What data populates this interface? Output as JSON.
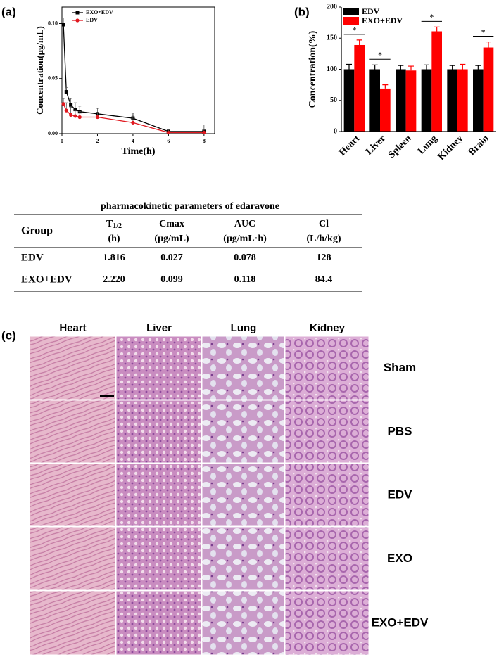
{
  "panel_labels": [
    "(a)",
    "(b)",
    "(c)"
  ],
  "chart_data": [
    {
      "type": "line",
      "xlabel": "Time(h)",
      "ylabel": "Concentration(μg/mL)",
      "x": [
        0.083,
        0.25,
        0.5,
        0.75,
        1,
        2,
        4,
        6,
        8
      ],
      "series": [
        {
          "name": "EXO+EDV",
          "color": "#000000",
          "marker": "square",
          "values": [
            0.099,
            0.038,
            0.026,
            0.022,
            0.02,
            0.018,
            0.014,
            0.002,
            0.002
          ],
          "errors": [
            0.006,
            0.004,
            0.006,
            0.006,
            0.005,
            0.005,
            0.004,
            0.002,
            0.002
          ]
        },
        {
          "name": "EDV",
          "color": "#e0181f",
          "marker": "circle",
          "values": [
            0.027,
            0.021,
            0.017,
            0.016,
            0.015,
            0.015,
            0.01,
            0.001,
            0.001
          ],
          "errors": [
            0.005,
            0.007,
            0.007,
            0.005,
            0.005,
            0.004,
            0.006,
            0.003,
            0.007
          ]
        }
      ],
      "xlim": [
        0,
        8.6
      ],
      "ylim": [
        0,
        0.115
      ],
      "xticks": [
        0,
        2,
        4,
        6,
        8
      ],
      "yticks": [
        {
          "value": 0,
          "label": "0.00"
        },
        {
          "value": 0.05,
          "label": "0.05"
        },
        {
          "value": 0.1,
          "label": "0.10"
        }
      ],
      "legend": "upper-left"
    },
    {
      "type": "bar",
      "ylabel": "Concentration(%)",
      "categories": [
        "Heart",
        "Liver",
        "Spleen",
        "Lung",
        "Kidney",
        "Brain"
      ],
      "series": [
        {
          "name": "EDV",
          "color": "#000000",
          "values": [
            100,
            100,
            100,
            100,
            100,
            100
          ],
          "errors": [
            8,
            7,
            6,
            7,
            6,
            6
          ]
        },
        {
          "name": "EXO+EDV",
          "color": "#ff0000",
          "values": [
            139,
            69,
            98,
            161,
            100,
            135
          ],
          "errors": [
            8,
            6,
            7,
            7,
            8,
            9
          ]
        }
      ],
      "significance": [
        "*",
        "*",
        null,
        "*",
        null,
        "*"
      ],
      "ylim": [
        0,
        200
      ],
      "yticks": [
        0,
        50,
        100,
        150,
        200
      ],
      "legend": "upper-left"
    }
  ],
  "table": {
    "title": "pharmacokinetic parameters of edaravone",
    "header": [
      {
        "symbol": "Group"
      },
      {
        "symbol": "T",
        "subscript": "1/2",
        "unit": "(h)"
      },
      {
        "symbol": "Cmax",
        "unit": "(μg/mL)"
      },
      {
        "symbol": "AUC",
        "unit": "(μg/mL·h)"
      },
      {
        "symbol": "Cl",
        "unit": "(L/h/kg)"
      }
    ],
    "rows": [
      [
        "EDV",
        "1.816",
        "0.027",
        "0.078",
        "128"
      ],
      [
        "EXO+EDV",
        "2.220",
        "0.099",
        "0.118",
        "84.4"
      ]
    ]
  },
  "histology": {
    "columns": [
      "Heart",
      "Liver",
      "Lung",
      "Kidney"
    ],
    "rows": [
      "Sham",
      "PBS",
      "EDV",
      "EXO",
      "EXO+EDV"
    ]
  }
}
